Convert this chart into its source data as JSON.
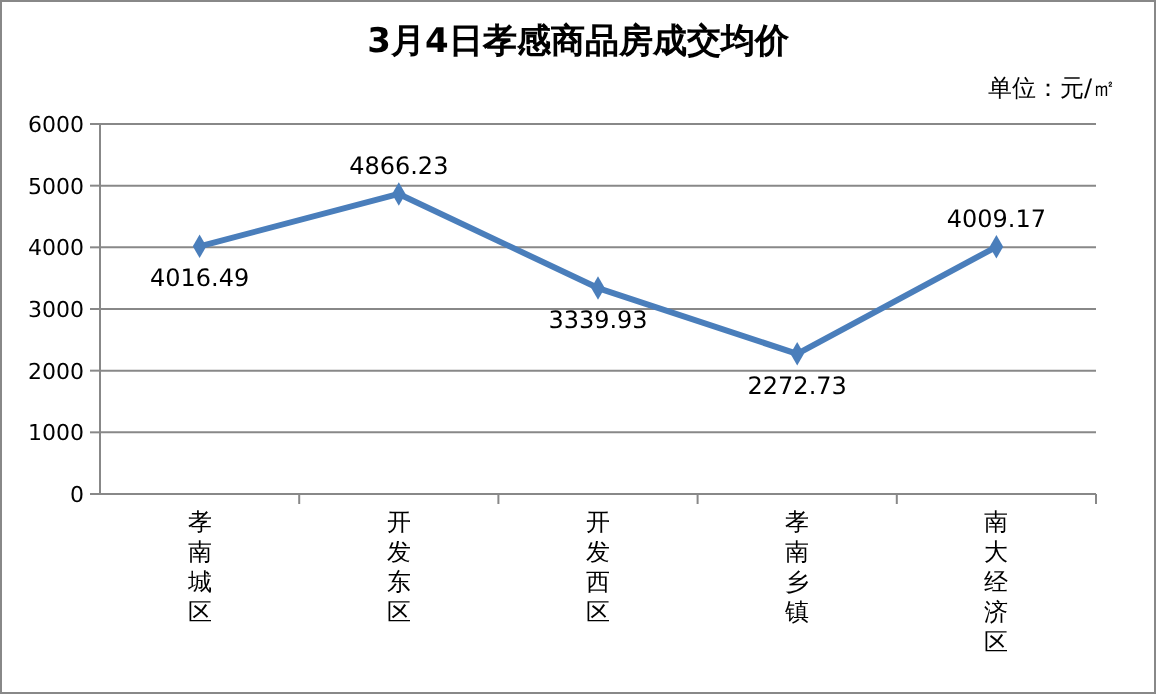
{
  "chart_data": {
    "type": "line",
    "title": "3月4日孝感商品房成交均价",
    "categories": [
      "孝南城区",
      "开发东区",
      "开发西区",
      "孝南乡镇",
      "南大经济区"
    ],
    "series": [
      {
        "color": "#4a7ebb",
        "values": [
          4016.49,
          4866.23,
          3339.93,
          2272.73,
          4009.17
        ]
      }
    ],
    "ylim": [
      0,
      6000
    ],
    "yticks": [
      0,
      1000,
      2000,
      3000,
      4000,
      5000,
      6000
    ],
    "grid": "y",
    "marker": "diamond",
    "data_labels": true,
    "annotations": [
      "单位：元/㎡"
    ]
  }
}
